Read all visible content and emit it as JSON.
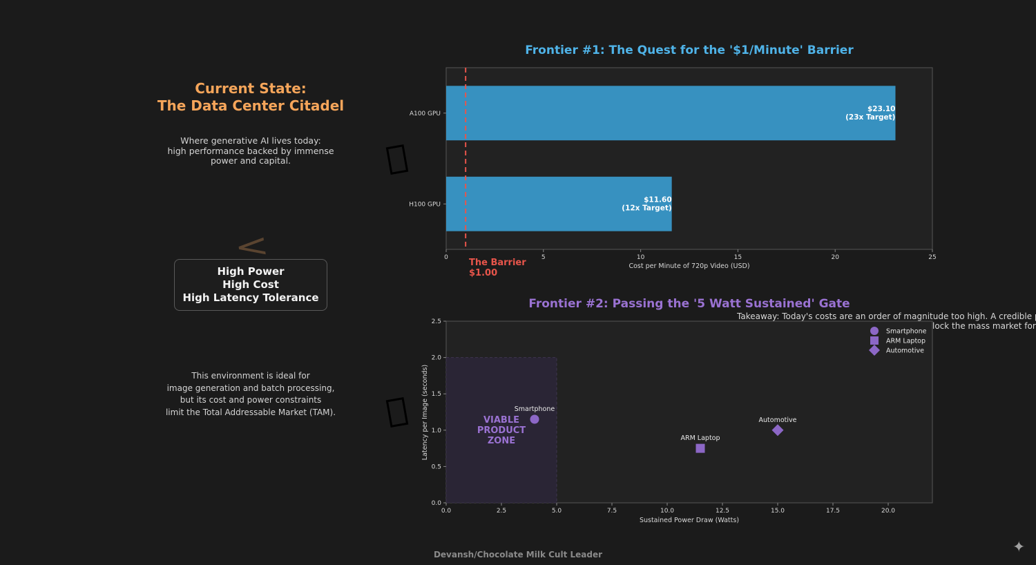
{
  "left_panel": {
    "title_line1": "Current State:",
    "title_line2": "The Data Center Citadel",
    "intro_lines": [
      "Where generative AI lives today:",
      "high performance backed by immense",
      "power and capital."
    ],
    "tags": [
      "High Power",
      "High Cost",
      "High Latency Tolerance"
    ],
    "bottom_lines": [
      "This environment is ideal for",
      "image generation and batch processing,",
      "but its cost and power constraints",
      "limit the Total Addressable Market (TAM)."
    ]
  },
  "chart_data": [
    {
      "type": "bar",
      "orientation": "horizontal",
      "title": "Frontier #1: The Quest for the '$1/Minute' Barrier",
      "categories": [
        "A100 GPU",
        "H100 GPU"
      ],
      "values": [
        23.1,
        11.6
      ],
      "value_labels": [
        [
          "$23.10",
          "(23x Target)"
        ],
        [
          "$11.60",
          "(12x Target)"
        ]
      ],
      "xlabel": "Cost per Minute of 720p Video (USD)",
      "xlim": [
        0,
        25
      ],
      "xticks": [
        0,
        5,
        10,
        15,
        20,
        25
      ],
      "bar_color": "#3791c0",
      "threshold": {
        "value": 1.0,
        "label_line1": "The Barrier",
        "label_line2": "$1.00",
        "color": "#e8554b"
      }
    },
    {
      "type": "scatter",
      "title": "Frontier #2: Passing the '5 Watt Sustained' Gate",
      "xlabel": "Sustained Power Draw (Watts)",
      "ylabel": "Latency per Image (seconds)",
      "xlim": [
        0,
        22
      ],
      "ylim": [
        0,
        2.5
      ],
      "xticks": [
        0,
        2.5,
        5,
        7.5,
        10,
        12.5,
        15,
        17.5,
        20
      ],
      "xtick_labels": [
        "0.0",
        "2.5",
        "5.0",
        "7.5",
        "10.0",
        "12.5",
        "15.0",
        "17.5",
        "20.0"
      ],
      "yticks": [
        0,
        0.5,
        1,
        1.5,
        2,
        2.5
      ],
      "ytick_labels": [
        "0.0",
        "0.5",
        "1.0",
        "1.5",
        "2.0",
        "2.5"
      ],
      "points": [
        {
          "name": "Smartphone",
          "x": 4,
          "y": 1.15,
          "marker": "circle"
        },
        {
          "name": "ARM Laptop",
          "x": 11.5,
          "y": 0.75,
          "marker": "square"
        },
        {
          "name": "Automotive",
          "x": 15,
          "y": 1.0,
          "marker": "diamond"
        }
      ],
      "marker_color": "#8c67c6",
      "legend": [
        "Smartphone",
        "ARM Laptop",
        "Automotive"
      ],
      "legend_position": "top-right",
      "zone": {
        "x_max": 5,
        "y_max": 2.0,
        "label_lines": [
          "VIABLE",
          "PRODUCT",
          "ZONE"
        ]
      }
    }
  ],
  "takeaway_line1": "Takeaway: Today's costs are an order of magnitude too high. A credible path",
  "takeaway_line2": "lock the mass market for c",
  "footer": "Devansh/Chocolate Milk Cult Leader",
  "colors": {
    "background": "#1b1b1b",
    "plot_bg": "#222222",
    "accent_orange": "#f5a55a",
    "accent_blue": "#4fb3e8",
    "accent_purple": "#9a72d2"
  }
}
